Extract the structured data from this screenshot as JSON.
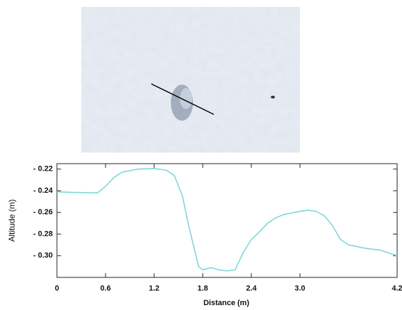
{
  "chart_data": {
    "type": "line",
    "x_label": "Distance (m)",
    "y_label": "Altitude  (m)",
    "x": [
      0,
      0.2,
      0.5,
      0.6,
      0.7,
      0.8,
      1.0,
      1.2,
      1.35,
      1.45,
      1.55,
      1.62,
      1.7,
      1.75,
      1.8,
      1.9,
      2.0,
      2.1,
      2.2,
      2.3,
      2.4,
      2.5,
      2.6,
      2.7,
      2.8,
      3.0,
      3.1,
      3.2,
      3.3,
      3.4,
      3.5,
      3.6,
      3.8,
      4.0,
      4.2
    ],
    "series": [
      {
        "color": "#7fd6dc",
        "values": [
          -0.241,
          -0.2415,
          -0.242,
          -0.236,
          -0.228,
          -0.223,
          -0.22,
          -0.2195,
          -0.221,
          -0.226,
          -0.245,
          -0.27,
          -0.295,
          -0.31,
          -0.313,
          -0.311,
          -0.313,
          -0.314,
          -0.313,
          -0.297,
          -0.285,
          -0.278,
          -0.27,
          -0.265,
          -0.262,
          -0.259,
          -0.258,
          -0.259,
          -0.263,
          -0.272,
          -0.285,
          -0.29,
          -0.293,
          -0.295,
          -0.3
        ]
      }
    ],
    "xlim": [
      0,
      4.2
    ],
    "ylim": [
      -0.32,
      -0.215
    ],
    "xticks": [
      0,
      0.6,
      1.2,
      1.8,
      2.4,
      {
        "value": 3,
        "label": "3.0"
      },
      4.2
    ],
    "yticks": [
      {
        "value": -0.22,
        "label": "- 0.22"
      },
      {
        "value": -0.24,
        "label": "- 0.24"
      },
      {
        "value": -0.26,
        "label": "- 0.26"
      },
      {
        "value": -0.28,
        "label": "- 0.28"
      },
      {
        "value": -0.3,
        "label": "- 0.30"
      }
    ]
  }
}
